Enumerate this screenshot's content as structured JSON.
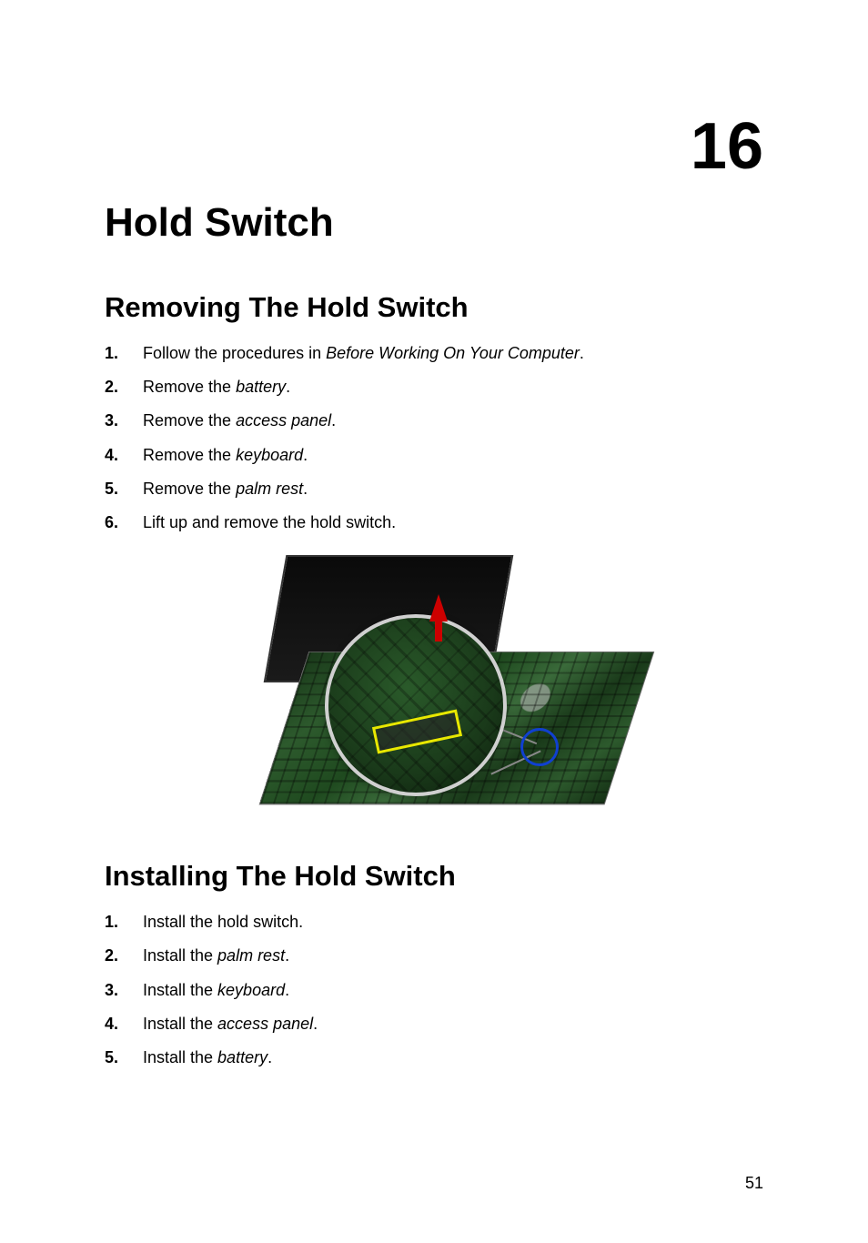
{
  "chapter_number": "16",
  "chapter_title": "Hold Switch",
  "section1": {
    "title": "Removing The Hold Switch",
    "steps": [
      {
        "prefix": "Follow the procedures in ",
        "italic": "Before Working On Your Computer",
        "suffix": "."
      },
      {
        "prefix": "Remove the ",
        "italic": "battery",
        "suffix": "."
      },
      {
        "prefix": "Remove the ",
        "italic": "access panel",
        "suffix": "."
      },
      {
        "prefix": "Remove the ",
        "italic": "keyboard",
        "suffix": "."
      },
      {
        "prefix": "Remove the ",
        "italic": "palm rest",
        "suffix": "."
      },
      {
        "prefix": "Lift up and remove the hold switch.",
        "italic": "",
        "suffix": ""
      }
    ]
  },
  "section2": {
    "title": "Installing The Hold Switch",
    "steps": [
      {
        "prefix": "Install the hold switch.",
        "italic": "",
        "suffix": ""
      },
      {
        "prefix": "Install the ",
        "italic": "palm rest",
        "suffix": "."
      },
      {
        "prefix": "Install the ",
        "italic": "keyboard",
        "suffix": "."
      },
      {
        "prefix": "Install the ",
        "italic": "access panel",
        "suffix": "."
      },
      {
        "prefix": "Install the ",
        "italic": "battery",
        "suffix": "."
      }
    ]
  },
  "figure": {
    "type": "technical-illustration",
    "description": "Laptop motherboard with circular callout showing hold switch location",
    "highlight_color": "#e8e800",
    "locator_color": "#1040d0",
    "arrow_color": "#cc0000",
    "board_color": "#1a3a1a"
  },
  "page_number": "51"
}
